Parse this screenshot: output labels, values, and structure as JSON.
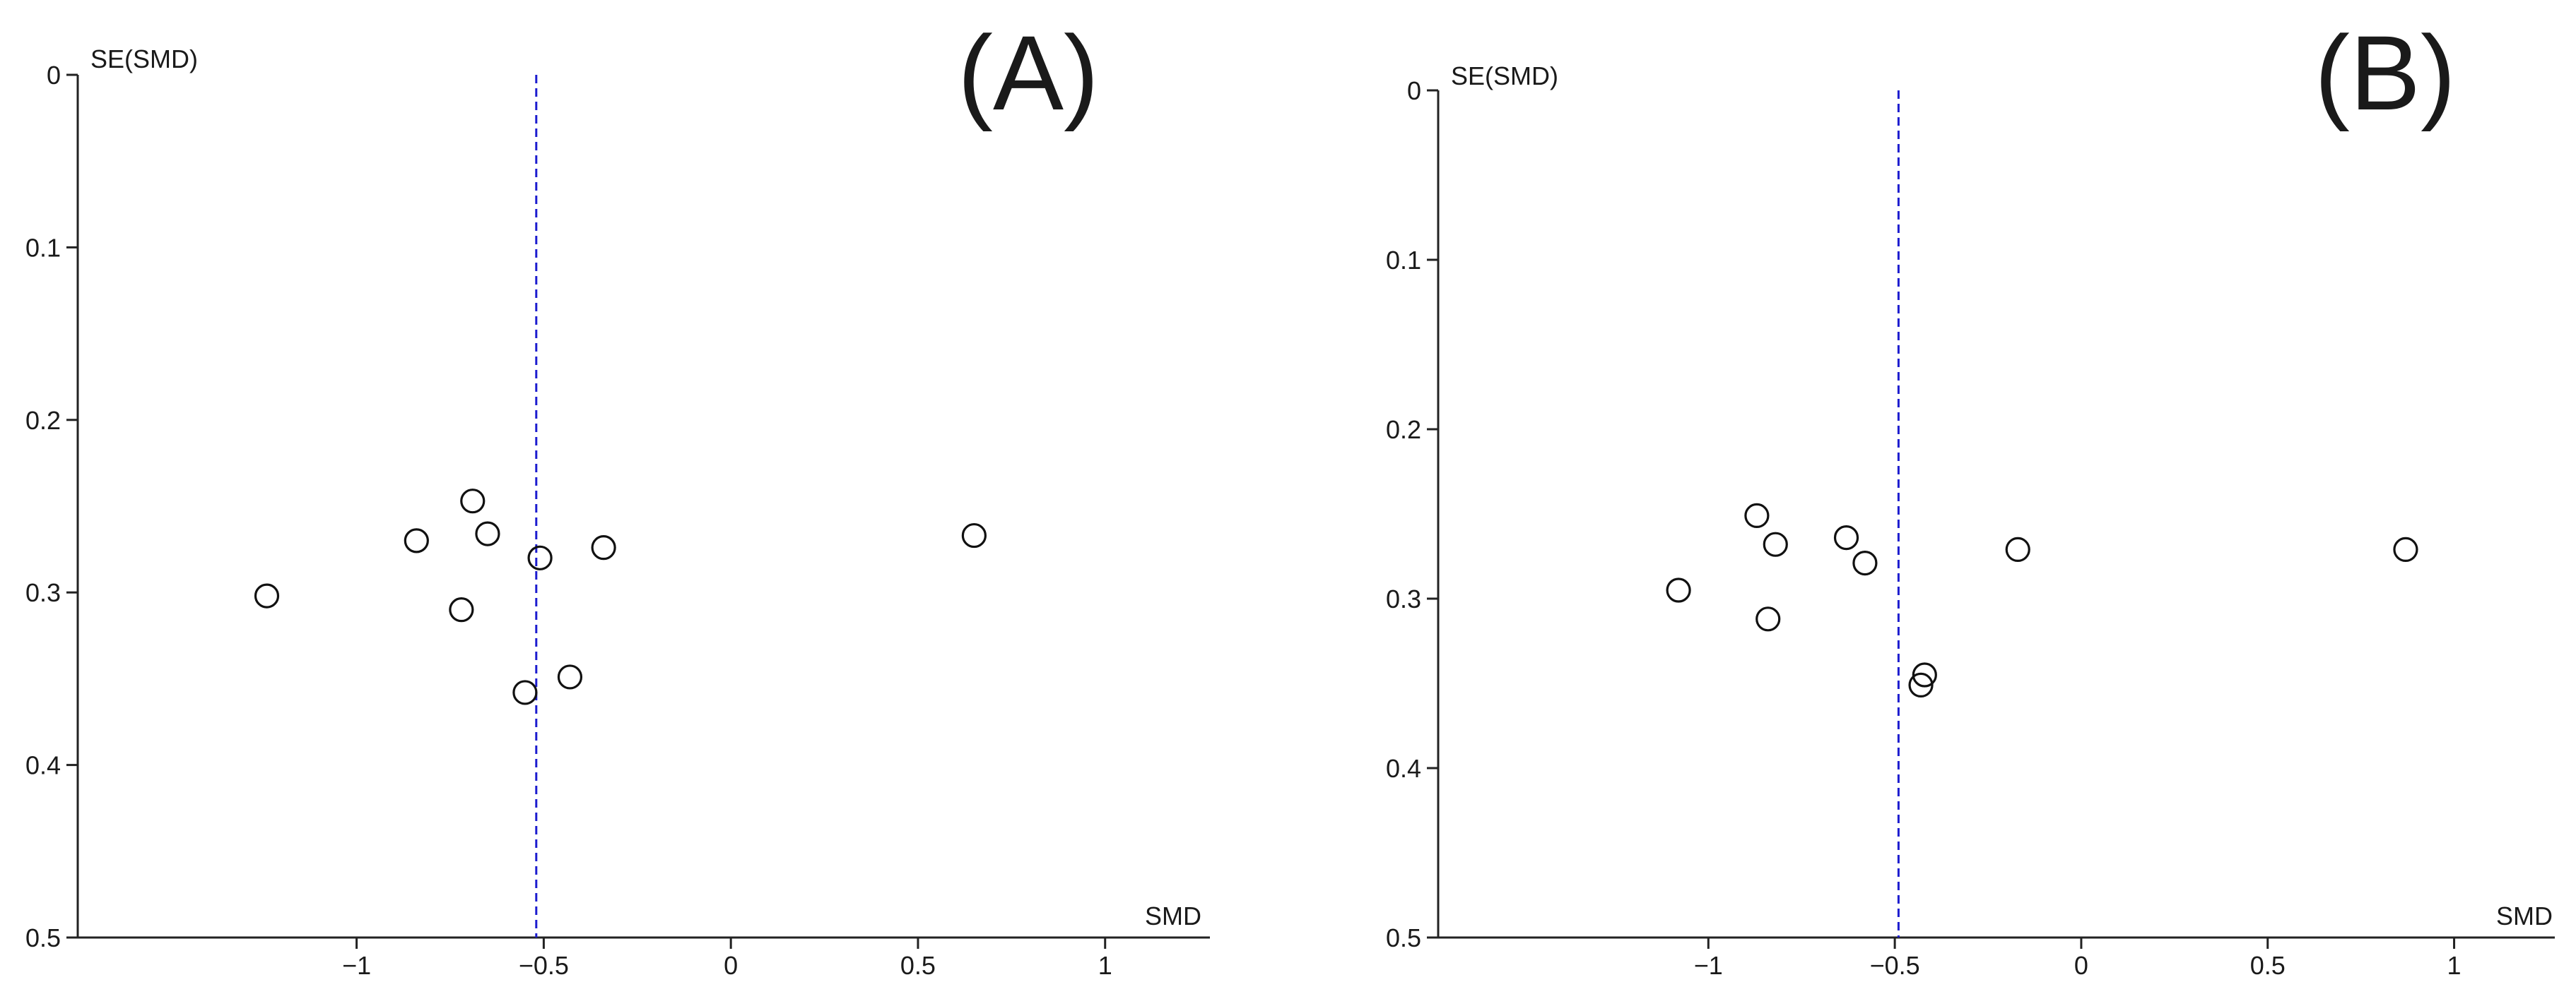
{
  "chart_data": [
    {
      "type": "scatter",
      "panel_label": "(A)",
      "xlabel": "SMD",
      "ylabel": "SE(SMD)",
      "xlim": [
        -1.9,
        1.28
      ],
      "ylim": [
        0,
        0.5
      ],
      "y_inverted": true,
      "x_ticks": [
        -1,
        -0.5,
        0,
        0.5,
        1
      ],
      "x_tick_labels": [
        "−1",
        "−0.5",
        "0",
        "0.5",
        "1"
      ],
      "y_ticks": [
        0,
        0.1,
        0.2,
        0.3,
        0.4,
        0.5
      ],
      "y_tick_labels": [
        "0",
        "0.1",
        "0.2",
        "0.3",
        "0.4",
        "0.5"
      ],
      "grid": false,
      "reference_line": {
        "x": -0.52,
        "style": "dashed",
        "color": "#1c1ccf"
      },
      "marker": "open-circle",
      "points": [
        {
          "x": -1.24,
          "y": 0.302
        },
        {
          "x": -0.84,
          "y": 0.27
        },
        {
          "x": -0.69,
          "y": 0.247
        },
        {
          "x": -0.65,
          "y": 0.266
        },
        {
          "x": -0.72,
          "y": 0.31
        },
        {
          "x": -0.51,
          "y": 0.28
        },
        {
          "x": -0.34,
          "y": 0.274
        },
        {
          "x": -0.43,
          "y": 0.349
        },
        {
          "x": -0.55,
          "y": 0.358
        },
        {
          "x": 0.65,
          "y": 0.267
        }
      ]
    },
    {
      "type": "scatter",
      "panel_label": "(B)",
      "xlabel": "SMD",
      "ylabel": "SE(SMD)",
      "xlim": [
        -1.88,
        1.27
      ],
      "ylim": [
        0,
        0.5
      ],
      "y_inverted": true,
      "x_ticks": [
        -1,
        -0.5,
        0,
        0.5,
        1
      ],
      "x_tick_labels": [
        "−1",
        "−0.5",
        "0",
        "0.5",
        "1"
      ],
      "y_ticks": [
        0,
        0.1,
        0.2,
        0.3,
        0.4,
        0.5
      ],
      "y_tick_labels": [
        "0",
        "0.1",
        "0.2",
        "0.3",
        "0.4",
        "0.5"
      ],
      "grid": false,
      "reference_line": {
        "x": -0.49,
        "style": "dashed",
        "color": "#1c1ccf"
      },
      "marker": "open-circle",
      "points": [
        {
          "x": -1.08,
          "y": 0.295
        },
        {
          "x": -0.87,
          "y": 0.251
        },
        {
          "x": -0.82,
          "y": 0.268
        },
        {
          "x": -0.84,
          "y": 0.312
        },
        {
          "x": -0.63,
          "y": 0.264
        },
        {
          "x": -0.58,
          "y": 0.279
        },
        {
          "x": -0.17,
          "y": 0.271
        },
        {
          "x": -0.42,
          "y": 0.345
        },
        {
          "x": -0.43,
          "y": 0.351
        },
        {
          "x": 0.87,
          "y": 0.271
        }
      ]
    }
  ]
}
